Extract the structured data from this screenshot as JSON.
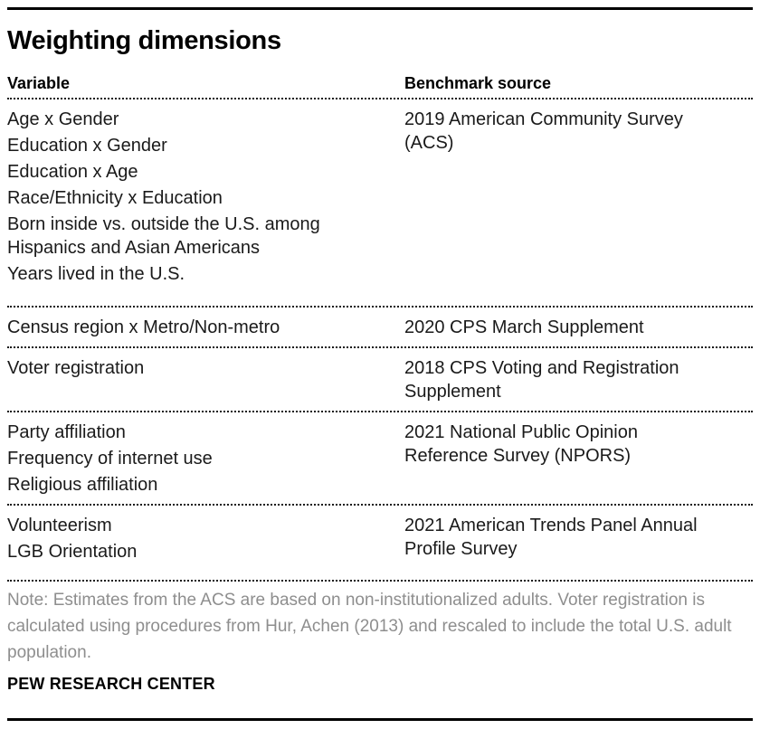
{
  "chart_data": {
    "type": "table",
    "title": "Weighting dimensions",
    "columns": [
      "Variable",
      "Benchmark source"
    ],
    "rows": [
      {
        "variables": [
          "Age x Gender",
          "Education x Gender",
          "Education x Age",
          "Race/Ethnicity x Education",
          "Born inside vs. outside the U.S. among Hispanics and Asian Americans",
          "Years lived in the U.S."
        ],
        "benchmark": "2019 American Community Survey (ACS)"
      },
      {
        "variables": [
          "Census region x Metro/Non-metro"
        ],
        "benchmark": "2020 CPS March Supplement"
      },
      {
        "variables": [
          "Voter registration"
        ],
        "benchmark": "2018 CPS Voting and Registration Supplement"
      },
      {
        "variables": [
          "Party affiliation",
          "Frequency of internet use",
          "Religious affiliation"
        ],
        "benchmark": "2021 National Public Opinion Reference Survey (NPORS)"
      },
      {
        "variables": [
          "Volunteerism",
          "LGB Orientation"
        ],
        "benchmark": "2021 American Trends Panel Annual Profile Survey"
      }
    ],
    "note": "Note: Estimates from the ACS are based on non-institutionalized adults. Voter registration is calculated using procedures from Hur, Achen (2013) and rescaled to include the total U.S. adult population.",
    "source": "PEW RESEARCH CENTER",
    "layout_hints": {
      "grid": "dotted row separators",
      "legend": "none"
    }
  },
  "colors": {
    "text": "#1a1a1a",
    "note_text": "#8e8e8e",
    "rule": "#000000",
    "dotted_rule": "#1a1a1a",
    "background": "#ffffff"
  }
}
